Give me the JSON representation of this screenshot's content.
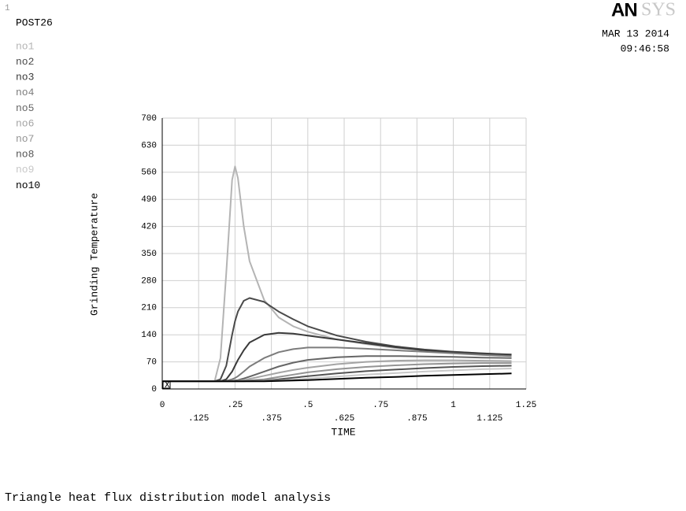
{
  "chart_data": {
    "type": "line",
    "window_number": "1",
    "title": "POST26",
    "logo_bold": "AN",
    "logo_light": "SYS",
    "date": "MAR 13 2014",
    "time": "09:46:58",
    "ylabel": "Grinding Temperature",
    "xlabel": "TIME",
    "footer": "Triangle heat flux distribution model analysis",
    "origin_marker": "X",
    "grid": true,
    "xlim": [
      0,
      1.25
    ],
    "ylim": [
      0,
      700
    ],
    "xticks": [
      0,
      {
        "value": 0.125,
        "label": ".125"
      },
      {
        "value": 0.25,
        "label": ".25"
      },
      {
        "value": 0.375,
        "label": ".375"
      },
      {
        "value": 0.5,
        "label": ".5"
      },
      {
        "value": 0.625,
        "label": ".625"
      },
      {
        "value": 0.75,
        "label": ".75"
      },
      {
        "value": 0.875,
        "label": ".875"
      },
      1,
      1.125,
      1.25
    ],
    "yticks": [
      0,
      70,
      140,
      210,
      280,
      350,
      420,
      490,
      560,
      630,
      700
    ],
    "x": [
      0,
      0.1,
      0.18,
      0.2,
      0.22,
      0.24,
      0.25,
      0.26,
      0.28,
      0.3,
      0.35,
      0.4,
      0.45,
      0.5,
      0.6,
      0.7,
      0.8,
      0.9,
      1.0,
      1.1,
      1.2
    ],
    "series": [
      {
        "name": "no1",
        "color": "#b4b4b4",
        "values": [
          20,
          20,
          20,
          80,
          300,
          540,
          575,
          545,
          420,
          330,
          230,
          185,
          162,
          148,
          128,
          116,
          106,
          100,
          96,
          92,
          89
        ]
      },
      {
        "name": "no2",
        "color": "#4a4a4a",
        "values": [
          20,
          20,
          20,
          25,
          60,
          140,
          175,
          200,
          228,
          235,
          225,
          200,
          180,
          162,
          138,
          122,
          110,
          102,
          96,
          92,
          89
        ]
      },
      {
        "name": "no3",
        "color": "#3a3a3a",
        "values": [
          20,
          20,
          20,
          20,
          25,
          45,
          60,
          75,
          100,
          120,
          140,
          145,
          143,
          138,
          128,
          118,
          108,
          100,
          95,
          91,
          88
        ]
      },
      {
        "name": "no4",
        "color": "#7c7c7c",
        "values": [
          20,
          20,
          20,
          20,
          21,
          25,
          28,
          33,
          45,
          58,
          80,
          95,
          103,
          107,
          107,
          104,
          100,
          96,
          92,
          88,
          85
        ]
      },
      {
        "name": "no5",
        "color": "#666666",
        "values": [
          20,
          20,
          20,
          20,
          20,
          21,
          22,
          23,
          27,
          32,
          45,
          58,
          68,
          75,
          82,
          85,
          85,
          84,
          83,
          81,
          80
        ]
      },
      {
        "name": "no6",
        "color": "#a4a4a4",
        "values": [
          20,
          20,
          20,
          20,
          20,
          20,
          20,
          21,
          23,
          26,
          34,
          42,
          49,
          55,
          64,
          70,
          73,
          74,
          74,
          73,
          72
        ]
      },
      {
        "name": "no7",
        "color": "#949494",
        "values": [
          20,
          20,
          20,
          20,
          20,
          20,
          20,
          20,
          21,
          22,
          25,
          31,
          37,
          43,
          51,
          57,
          61,
          64,
          66,
          67,
          67
        ]
      },
      {
        "name": "no8",
        "color": "#545454",
        "values": [
          20,
          20,
          20,
          20,
          20,
          20,
          20,
          20,
          20,
          21,
          22,
          25,
          29,
          33,
          40,
          46,
          50,
          54,
          57,
          59,
          60
        ]
      },
      {
        "name": "no9",
        "color": "#c8c8c8",
        "values": [
          20,
          20,
          20,
          20,
          20,
          20,
          20,
          20,
          20,
          20,
          21,
          22,
          24,
          27,
          32,
          37,
          41,
          45,
          48,
          51,
          53
        ]
      },
      {
        "name": "no10",
        "color": "#000000",
        "values": [
          20,
          20,
          20,
          20,
          20,
          20,
          20,
          20,
          20,
          20,
          20,
          21,
          22,
          23,
          26,
          29,
          31,
          34,
          36,
          38,
          40
        ]
      }
    ]
  }
}
